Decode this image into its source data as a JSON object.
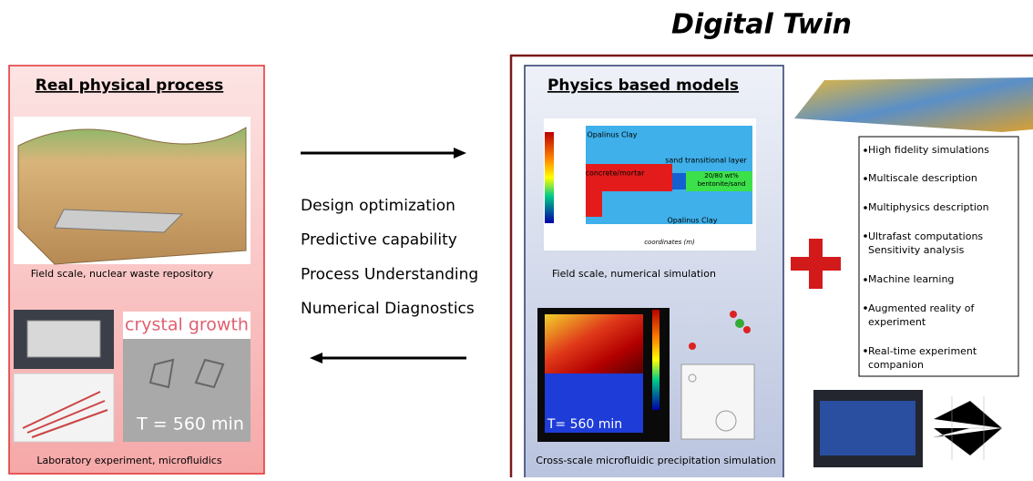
{
  "header": {
    "title": "Digital Twin"
  },
  "physical": {
    "title": "Real physical process",
    "field_caption": "Field scale, nuclear waste repository",
    "lab_caption": "Laboratory experiment, microfluidics",
    "crystal_title": "crystal growth",
    "crystal_time": "T = 560 min"
  },
  "methods": [
    "Design optimization",
    "Predictive capability",
    "Process Understanding",
    "Numerical Diagnostics"
  ],
  "models": {
    "title": "Physics based models",
    "simulation": {
      "top_label": "Opalinus Clay",
      "concrete_label": "concrete/mortar",
      "sand_label": "sand transitional layer",
      "bentonite_label": "20/80 wt% bentonite/sand",
      "bottom_label": "Opalinus Clay",
      "axis_label": "coordinates (m)"
    },
    "field_caption": "Field scale, numerical simulation",
    "micro_time": "T= 560 min",
    "micro_caption": "Cross-scale microfluidic precipitation simulation"
  },
  "capabilities": [
    "High fidelity simulations",
    "Multiscale description",
    "Multiphysics description",
    "Ultrafast computations Sensitivity analysis",
    "Machine learning",
    "Augmented reality of experiment",
    "Real-time experiment companion"
  ]
}
